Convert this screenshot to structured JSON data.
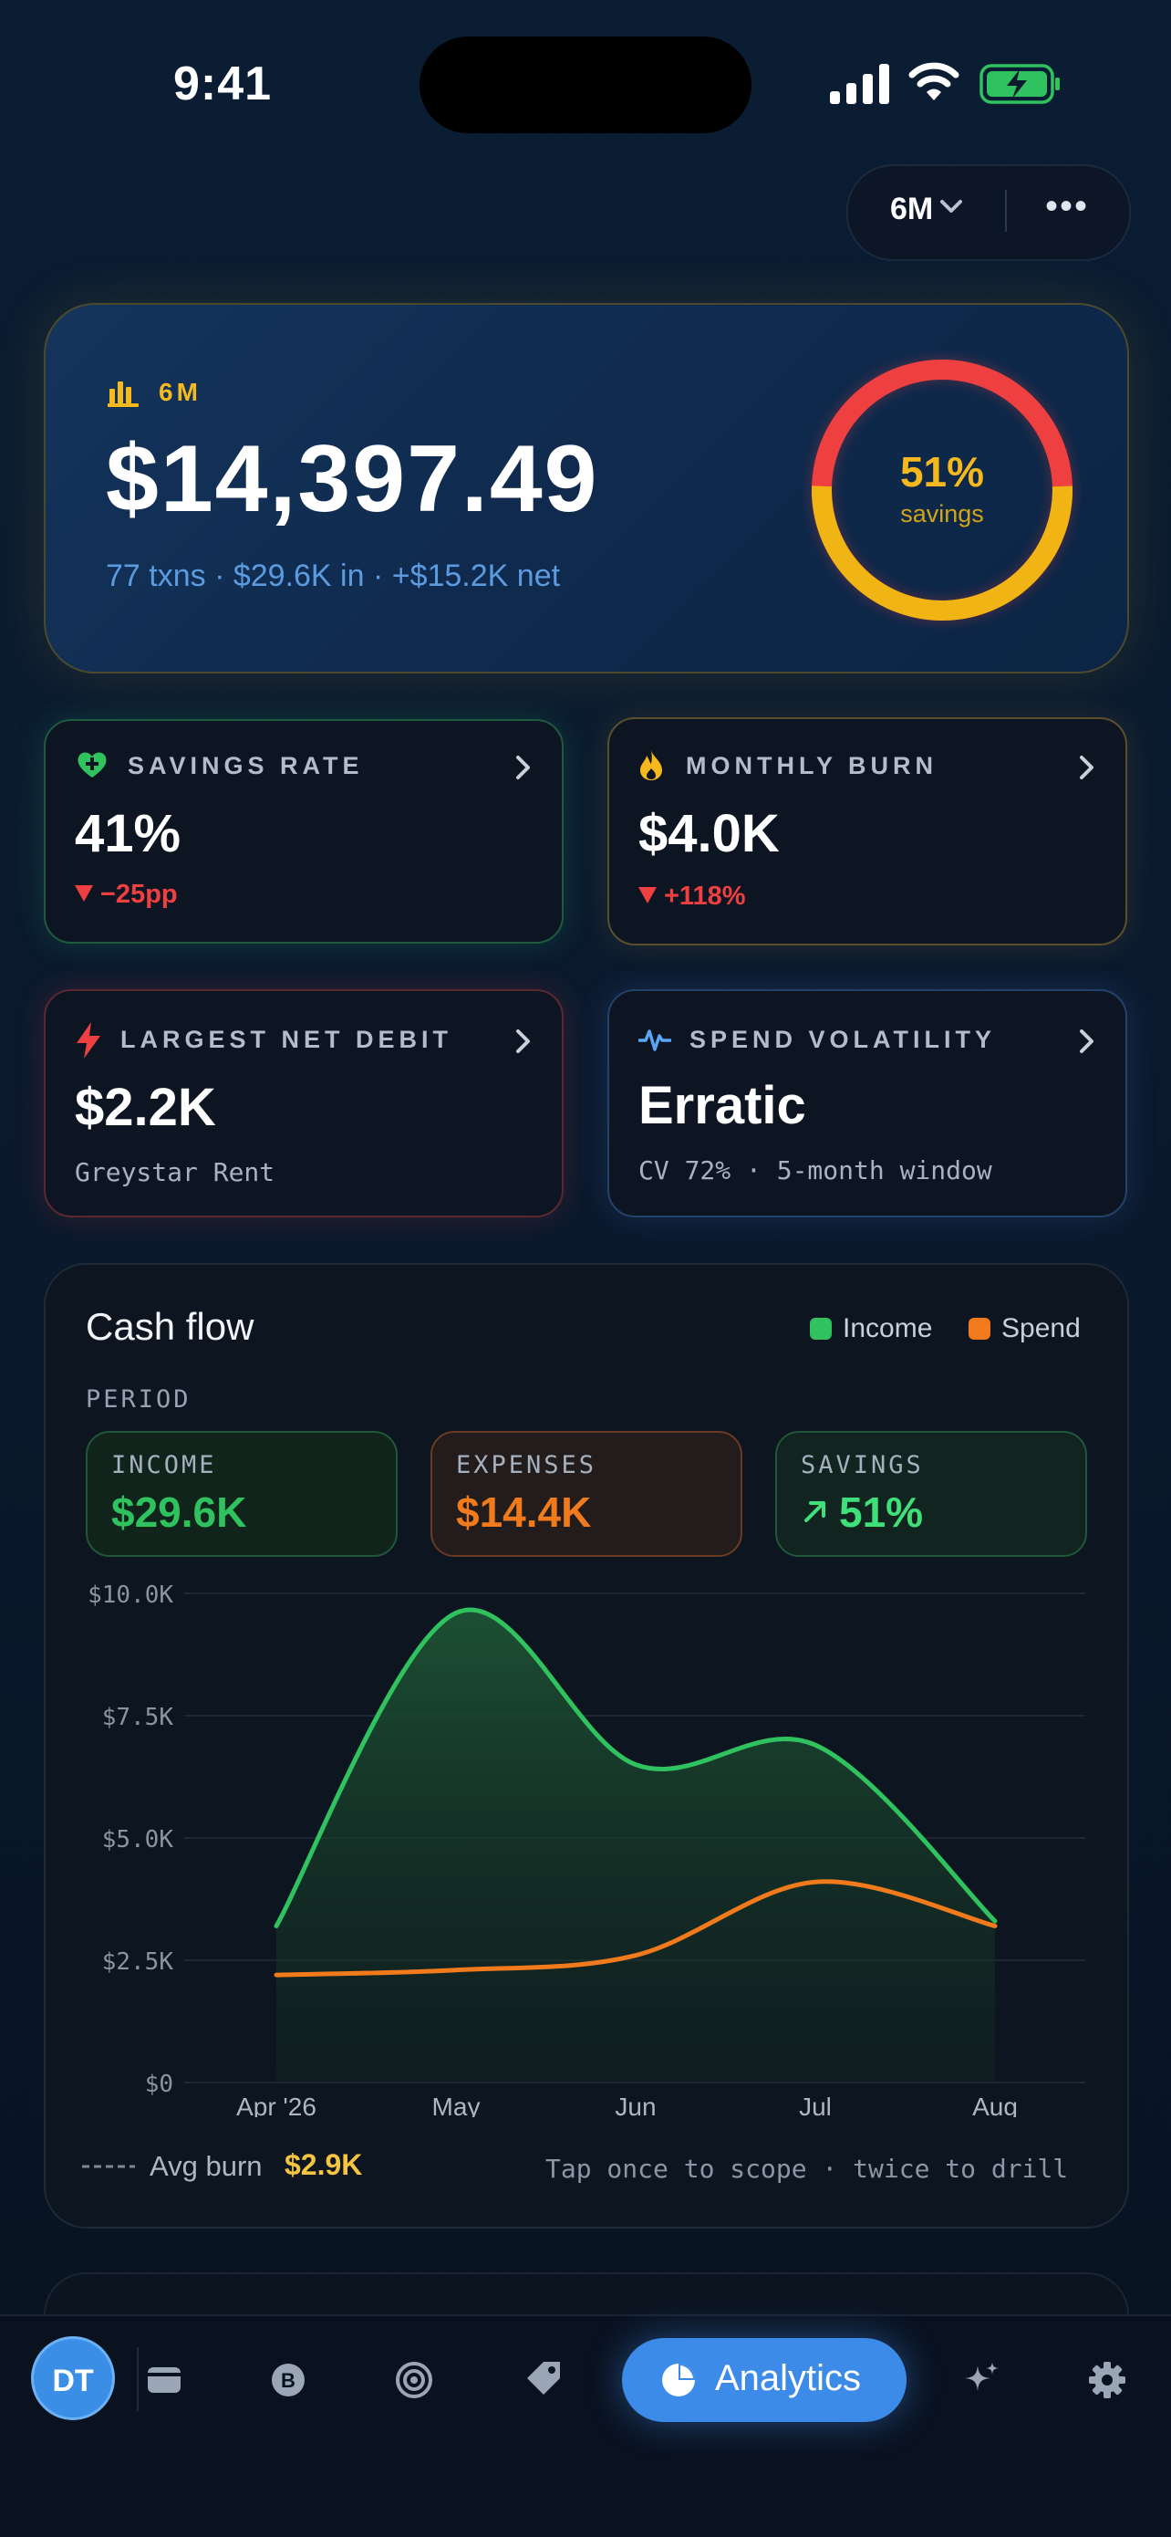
{
  "status_bar": {
    "time": "9:41"
  },
  "header": {
    "range": "6M"
  },
  "hero": {
    "range": "6M",
    "amount": "$14,397.49",
    "subtitle": "77 txns · $29.6K in · +$15.2K net",
    "ring_value": "51%",
    "ring_label": "savings",
    "ring_fraction": 0.51
  },
  "cards": {
    "savings_rate": {
      "label": "SAVINGS RATE",
      "value": "41%",
      "delta": "−25pp"
    },
    "monthly_burn": {
      "label": "MONTHLY BURN",
      "value": "$4.0K",
      "delta": "+118%"
    },
    "largest_debit": {
      "label": "LARGEST NET DEBIT",
      "value": "$2.2K",
      "sub": "Greystar Rent"
    },
    "volatility": {
      "label": "SPEND VOLATILITY",
      "value": "Erratic",
      "sub": "CV 72% · 5-month window"
    }
  },
  "cashflow": {
    "title": "Cash flow",
    "legend_income": "Income",
    "legend_spend": "Spend",
    "period_label": "PERIOD",
    "income_label": "INCOME",
    "income_value": "$29.6K",
    "expenses_label": "EXPENSES",
    "expenses_value": "$14.4K",
    "savings_label": "SAVINGS",
    "savings_value": "51%",
    "avg_label": "Avg burn",
    "avg_value": "$2.9K",
    "hint": "Tap once to scope · twice to drill"
  },
  "chart_data": {
    "type": "area",
    "categories": [
      "Apr '26",
      "May",
      "Jun",
      "Jul",
      "Aug"
    ],
    "y_ticks": [
      "$10.0K",
      "$7.5K",
      "$5.0K",
      "$2.5K",
      "$0"
    ],
    "ylim": [
      0,
      10000
    ],
    "series": [
      {
        "name": "Income",
        "values": [
          3200,
          9600,
          6500,
          6900,
          3300
        ]
      },
      {
        "name": "Spend",
        "values": [
          2200,
          2300,
          2600,
          4100,
          3200
        ]
      }
    ],
    "grid": true,
    "legend": "top-right"
  },
  "tabbar": {
    "avatar": "DT",
    "active_label": "Analytics"
  },
  "colors": {
    "income": "#2fc25f",
    "spend": "#f07a1c",
    "accent": "#3d8be8",
    "gold": "#f5b91e",
    "negative": "#ee4040"
  }
}
